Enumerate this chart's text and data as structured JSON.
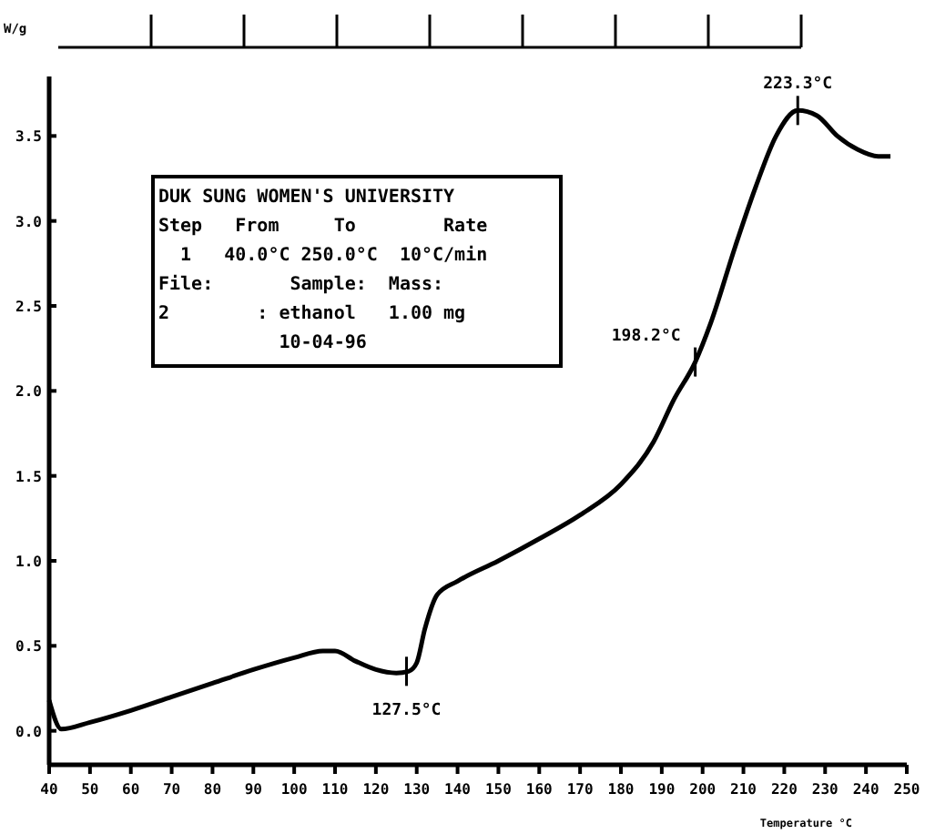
{
  "chart_data": {
    "type": "line",
    "ylabel": "W/g",
    "xlabel": "Temperature °C",
    "xlim": [
      40,
      250
    ],
    "xticks": [
      40,
      50,
      60,
      70,
      80,
      90,
      100,
      110,
      120,
      130,
      140,
      150,
      160,
      170,
      180,
      190,
      200,
      210,
      220,
      230,
      240,
      250
    ],
    "ylim": [
      -0.2,
      3.85
    ],
    "yticks": [
      {
        "value": 0,
        "label": "0.0"
      },
      0.5,
      {
        "value": 1,
        "label": "1.0"
      },
      1.5,
      {
        "value": 2,
        "label": "2.0"
      },
      2.5,
      {
        "value": 3,
        "label": "3.0"
      },
      3.5
    ],
    "grid": false,
    "marker": "none",
    "line_style": "solid",
    "series": [
      {
        "color": "#000000",
        "x": [
          40,
          43,
          50,
          60,
          70,
          80,
          90,
          100,
          107,
          110,
          115,
          120,
          125,
          128,
          130,
          132,
          135,
          140,
          150,
          160,
          170,
          180,
          188,
          193,
          198.2,
          202,
          208,
          213,
          218,
          223.3,
          228,
          233,
          238,
          243,
          246
        ],
        "values": [
          0.18,
          0.01,
          0.05,
          0.12,
          0.2,
          0.28,
          0.36,
          0.43,
          0.47,
          0.47,
          0.41,
          0.36,
          0.34,
          0.35,
          0.4,
          0.6,
          0.8,
          0.88,
          1.0,
          1.13,
          1.27,
          1.45,
          1.7,
          1.95,
          2.17,
          2.4,
          2.85,
          3.2,
          3.5,
          3.65,
          3.62,
          3.5,
          3.42,
          3.38,
          3.38
        ]
      }
    ],
    "annotations": [
      "DUK SUNG WOMEN'S UNIVERSITY",
      "Step   From     To        Rate",
      "  1   40.0°C 250.0°C  10°C/min",
      "File:       Sample:  Mass:",
      "2        : ethanol   1.00 mg",
      "           10-04-96",
      {
        "text": "127.5°C",
        "x": 127.5,
        "y": 0.35
      },
      {
        "text": "198.2°C",
        "x": 198.2,
        "y": 2.17
      },
      {
        "text": "223.3°C",
        "x": 223.3,
        "y": 3.65
      }
    ]
  }
}
